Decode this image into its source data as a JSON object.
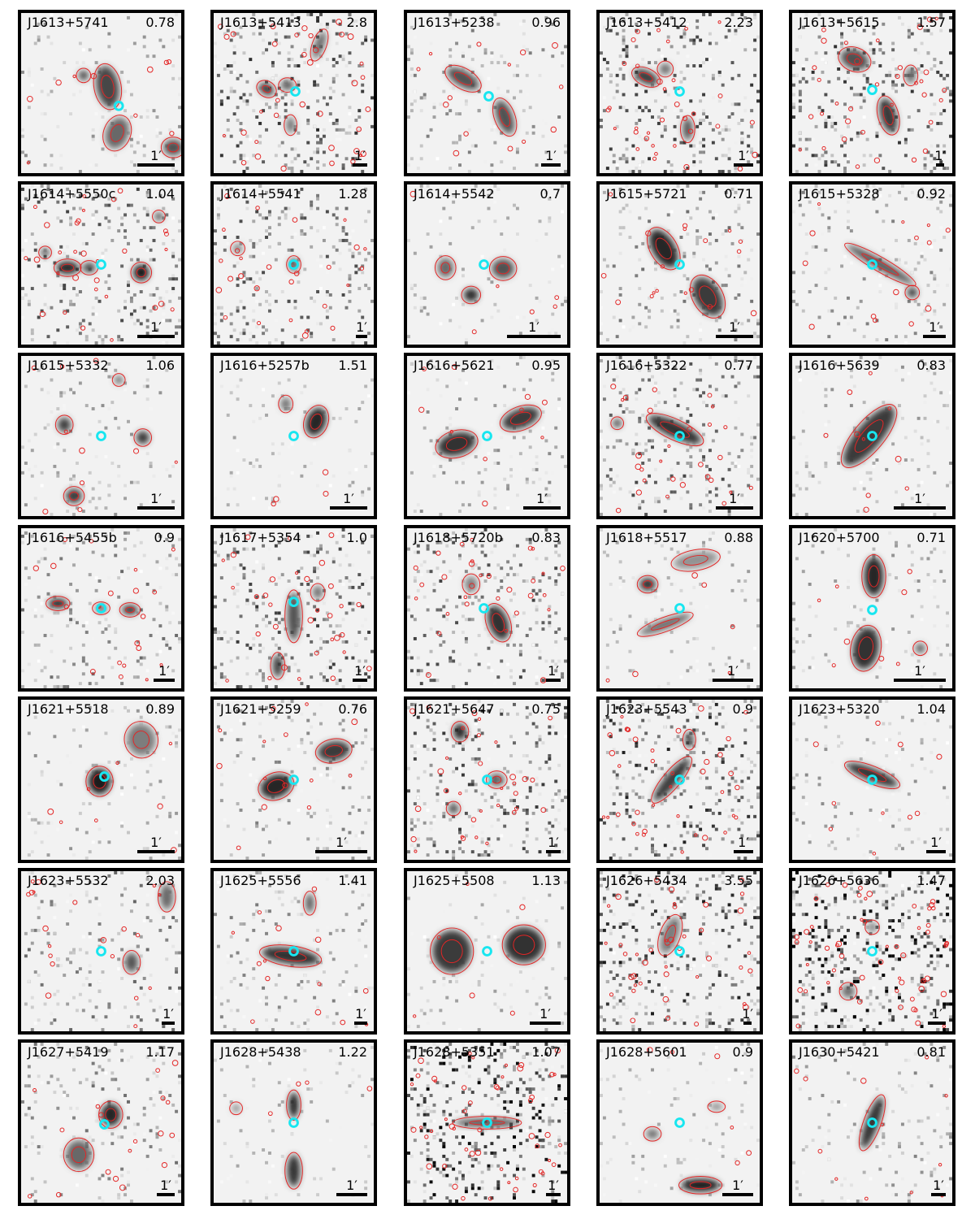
{
  "scale_label": "1′",
  "colors": {
    "contour": "#e32626",
    "marker": "#18e6f0",
    "border": "#000000"
  },
  "panels": [
    {
      "name": "J1613+5741",
      "z": "0.78"
    },
    {
      "name": "J1613+5413",
      "z": "2.8"
    },
    {
      "name": "J1613+5238",
      "z": "0.96"
    },
    {
      "name": "J1613+5412",
      "z": "2.23"
    },
    {
      "name": "J1613+5615",
      "z": "1.57"
    },
    {
      "name": "J1614+5550c",
      "z": "1.04"
    },
    {
      "name": "J1614+5541",
      "z": "1.28"
    },
    {
      "name": "J1614+5542",
      "z": "0.7"
    },
    {
      "name": "J1615+5721",
      "z": "0.71"
    },
    {
      "name": "J1615+5328",
      "z": "0.92"
    },
    {
      "name": "J1615+5332",
      "z": "1.06"
    },
    {
      "name": "J1616+5257b",
      "z": "1.51"
    },
    {
      "name": "J1616+5621",
      "z": "0.95"
    },
    {
      "name": "J1616+5322",
      "z": "0.77"
    },
    {
      "name": "J1616+5639",
      "z": "0.83"
    },
    {
      "name": "J1616+5455b",
      "z": "0.9"
    },
    {
      "name": "J1617+5354",
      "z": "1.0"
    },
    {
      "name": "J1618+5720b",
      "z": "0.83"
    },
    {
      "name": "J1618+5517",
      "z": "0.88"
    },
    {
      "name": "J1620+5700",
      "z": "0.71"
    },
    {
      "name": "J1621+5518",
      "z": "0.89"
    },
    {
      "name": "J1621+5259",
      "z": "0.76"
    },
    {
      "name": "J1621+5647",
      "z": "0.75"
    },
    {
      "name": "J1623+5543",
      "z": "0.9"
    },
    {
      "name": "J1623+5320",
      "z": "1.04"
    },
    {
      "name": "J1623+5532",
      "z": "2.03"
    },
    {
      "name": "J1625+5556",
      "z": "1.41"
    },
    {
      "name": "J1625+5508",
      "z": "1.13"
    },
    {
      "name": "J1626+5434",
      "z": "3.55"
    },
    {
      "name": "J1626+5636",
      "z": "1.47"
    },
    {
      "name": "J1627+5419",
      "z": "1.17"
    },
    {
      "name": "J1628+5438",
      "z": "1.22"
    },
    {
      "name": "J1628+5351",
      "z": "1.07"
    },
    {
      "name": "J1628+5601",
      "z": "0.9"
    },
    {
      "name": "J1630+5421",
      "z": "0.81"
    }
  ]
}
